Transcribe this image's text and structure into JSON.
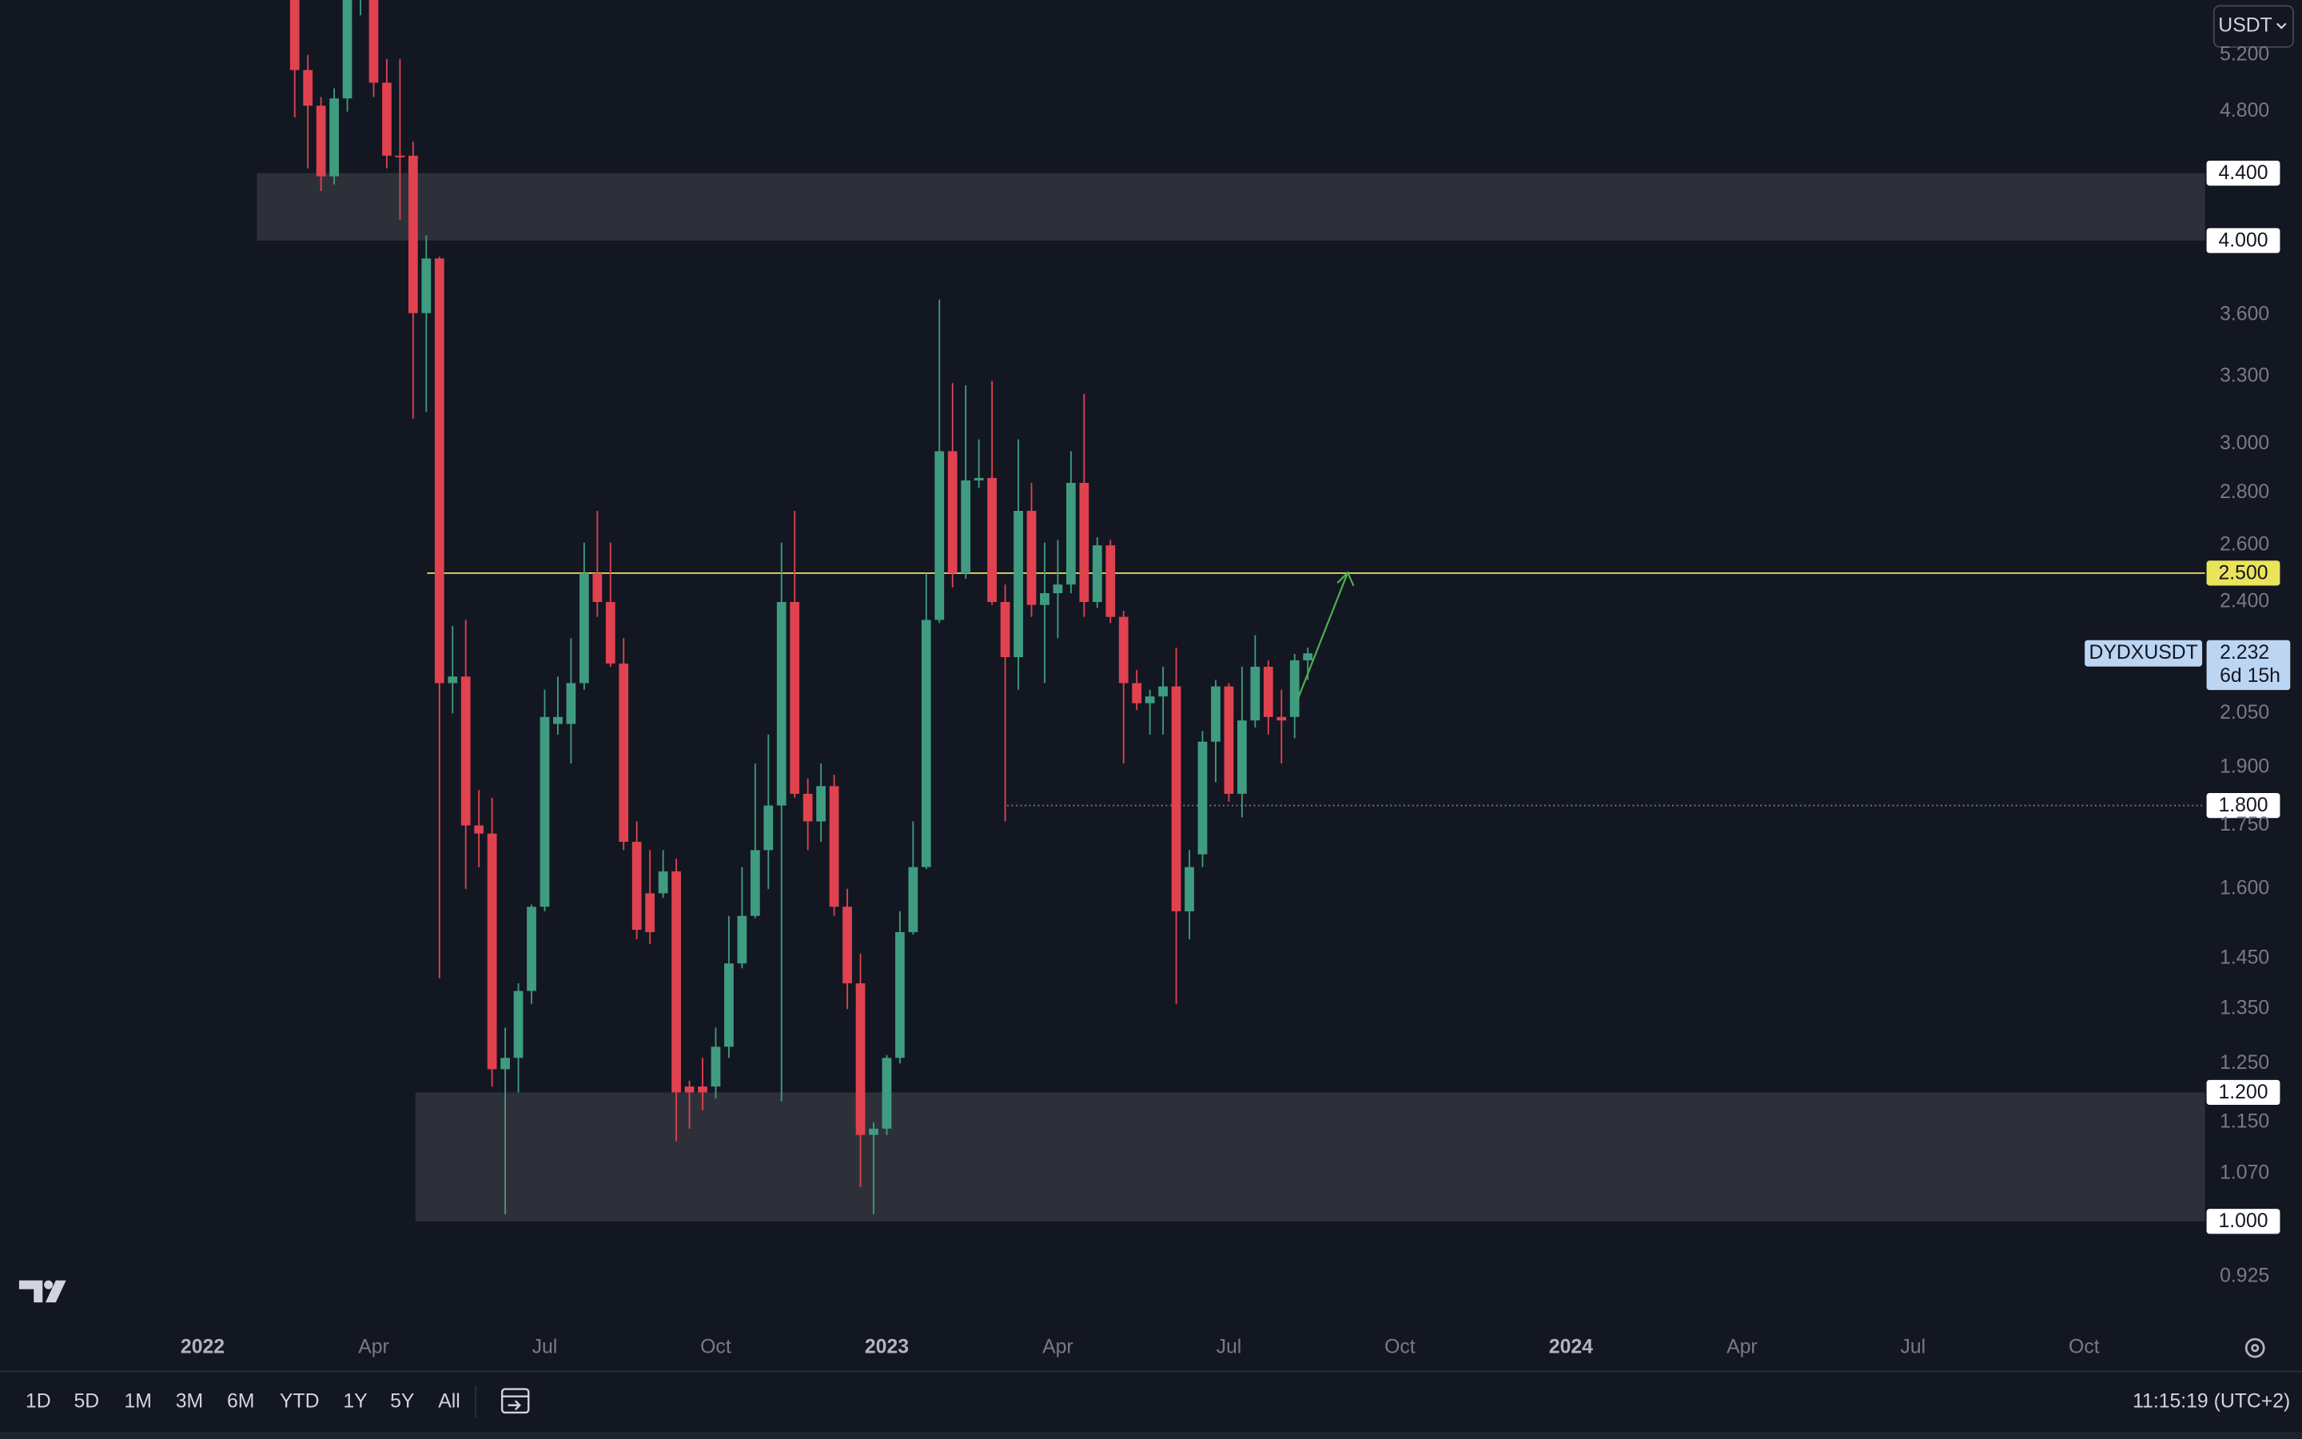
{
  "chart_data": {
    "type": "candlestick",
    "symbol": "DYDXUSDT",
    "currency": "USDT",
    "countdown": "6d 15h",
    "up_color": "#3f9c80",
    "down_color": "#e0424f",
    "log_scale": true,
    "grid": false,
    "x": [
      7,
      8,
      9,
      10,
      11,
      12,
      13,
      14,
      15,
      16,
      17,
      18,
      19,
      20,
      21,
      22,
      23,
      24,
      25,
      26,
      27,
      28,
      29,
      30,
      31,
      32,
      33,
      34,
      35,
      36,
      37,
      38,
      39,
      40,
      41,
      42,
      43,
      44,
      45,
      46,
      47,
      48,
      49,
      50,
      51,
      52,
      53,
      54,
      55,
      56,
      57,
      58,
      59,
      60,
      61,
      62,
      63,
      64,
      65,
      66,
      67,
      68,
      69,
      70,
      71,
      72,
      73,
      74,
      75,
      76,
      77,
      78,
      79,
      80,
      81,
      82,
      83,
      84
    ],
    "open": [
      5.7,
      5.09,
      4.84,
      4.38,
      4.89,
      5.75,
      5.9,
      5.0,
      4.51,
      4.51,
      3.61,
      3.9,
      2.14,
      2.16,
      1.75,
      1.73,
      1.24,
      1.26,
      1.385,
      1.56,
      2.02,
      2.02,
      2.14,
      2.5,
      2.4,
      2.2,
      1.71,
      1.59,
      1.59,
      1.64,
      1.21,
      1.21,
      1.21,
      1.28,
      1.44,
      1.54,
      1.69,
      1.8,
      2.4,
      1.83,
      1.76,
      1.85,
      1.56,
      1.4,
      1.13,
      1.14,
      1.26,
      1.505,
      1.65,
      2.34,
      2.97,
      2.5,
      2.85,
      2.86,
      2.4,
      2.22,
      2.73,
      2.39,
      2.43,
      2.46,
      2.84,
      2.4,
      2.6,
      2.35,
      2.14,
      2.08,
      2.1,
      2.13,
      1.55,
      1.68,
      1.97,
      2.13,
      1.83,
      2.03,
      2.19,
      2.04,
      2.04,
      2.21
    ],
    "high": [
      5.9,
      5.2,
      4.9,
      4.96,
      5.9,
      6.0,
      6.1,
      5.17,
      5.17,
      4.6,
      4.03,
      3.91,
      2.32,
      2.34,
      1.84,
      1.82,
      1.315,
      1.4,
      1.565,
      2.12,
      2.16,
      2.28,
      2.61,
      2.73,
      2.61,
      2.28,
      1.76,
      1.69,
      1.69,
      1.67,
      1.22,
      1.26,
      1.315,
      1.54,
      1.65,
      1.91,
      1.99,
      2.61,
      2.73,
      1.87,
      1.91,
      1.88,
      1.6,
      1.46,
      1.15,
      1.265,
      1.55,
      1.76,
      2.5,
      3.68,
      3.27,
      3.26,
      3.02,
      3.28,
      2.46,
      3.02,
      2.84,
      2.61,
      2.62,
      2.97,
      3.22,
      2.63,
      2.62,
      2.37,
      2.18,
      2.12,
      2.19,
      2.25,
      1.69,
      2.0,
      2.15,
      2.14,
      2.19,
      2.29,
      2.21,
      2.12,
      2.23,
      2.25
    ],
    "low": [
      4.76,
      4.43,
      4.29,
      4.33,
      4.8,
      5.5,
      4.9,
      4.43,
      4.12,
      3.11,
      3.14,
      1.41,
      2.05,
      1.6,
      1.65,
      1.21,
      1.01,
      1.2,
      1.36,
      1.55,
      1.99,
      1.91,
      2.12,
      2.35,
      2.19,
      1.69,
      1.49,
      1.48,
      1.58,
      1.12,
      1.14,
      1.17,
      1.19,
      1.26,
      1.43,
      1.535,
      1.6,
      1.185,
      1.82,
      1.69,
      1.71,
      1.54,
      1.35,
      1.05,
      1.01,
      1.13,
      1.25,
      1.5,
      1.645,
      2.33,
      2.45,
      2.48,
      2.82,
      2.39,
      1.76,
      2.12,
      2.35,
      2.14,
      2.28,
      2.43,
      2.35,
      2.38,
      2.33,
      1.91,
      2.06,
      1.99,
      1.99,
      1.36,
      1.49,
      1.65,
      1.86,
      1.81,
      1.77,
      2.01,
      1.99,
      1.91,
      1.98,
      2.15
    ],
    "close": [
      5.09,
      4.84,
      4.38,
      4.89,
      5.75,
      5.9,
      5.0,
      4.51,
      4.5,
      3.61,
      3.9,
      2.14,
      2.16,
      1.75,
      1.73,
      1.24,
      1.26,
      1.385,
      1.56,
      2.04,
      2.04,
      2.14,
      2.5,
      2.4,
      2.2,
      1.71,
      1.51,
      1.505,
      1.64,
      1.2,
      1.2,
      1.2,
      1.28,
      1.44,
      1.54,
      1.69,
      1.8,
      2.4,
      1.83,
      1.76,
      1.85,
      1.56,
      1.4,
      1.13,
      1.14,
      1.26,
      1.505,
      1.65,
      2.34,
      2.97,
      2.5,
      2.85,
      2.86,
      2.4,
      2.22,
      2.73,
      2.39,
      2.43,
      2.46,
      2.84,
      2.4,
      2.6,
      2.35,
      2.14,
      2.08,
      2.1,
      2.13,
      1.55,
      1.65,
      1.97,
      2.13,
      1.83,
      2.03,
      2.19,
      2.04,
      2.03,
      2.21,
      2.232
    ],
    "xlim": [
      -15.4,
      152.2
    ],
    "xticks": [
      {
        "value": 0,
        "label": "2022"
      },
      {
        "value": 13,
        "label": "Apr"
      },
      {
        "value": 26,
        "label": "Jul"
      },
      {
        "value": 39,
        "label": "Oct"
      },
      {
        "value": 52,
        "label": "2023"
      },
      {
        "value": 65,
        "label": "Apr"
      },
      {
        "value": 78,
        "label": "Jul"
      },
      {
        "value": 91,
        "label": "Oct"
      },
      {
        "value": 104,
        "label": "2024"
      },
      {
        "value": 117,
        "label": "Apr"
      },
      {
        "value": 130,
        "label": "Jul"
      },
      {
        "value": 143,
        "label": "Oct"
      }
    ],
    "ylim": [
      0.868,
      5.62
    ],
    "yticks": [
      {
        "value": 5.2,
        "label": "5.200"
      },
      {
        "value": 4.8,
        "label": "4.800"
      },
      {
        "value": 3.6,
        "label": "3.600"
      },
      {
        "value": 3.3,
        "label": "3.300"
      },
      {
        "value": 3.0,
        "label": "3.000"
      },
      {
        "value": 2.8,
        "label": "2.800"
      },
      {
        "value": 2.6,
        "label": "2.600"
      },
      {
        "value": 2.4,
        "label": "2.400"
      },
      {
        "value": 2.05,
        "label": "2.050"
      },
      {
        "value": 1.9,
        "label": "1.900"
      },
      {
        "value": 1.75,
        "label": "1.750"
      },
      {
        "value": 1.6,
        "label": "1.600"
      },
      {
        "value": 1.45,
        "label": "1.450"
      },
      {
        "value": 1.35,
        "label": "1.350"
      },
      {
        "value": 1.25,
        "label": "1.250"
      },
      {
        "value": 1.15,
        "label": "1.150"
      },
      {
        "value": 1.07,
        "label": "1.070"
      },
      {
        "value": 0.925,
        "label": "0.925"
      }
    ],
    "zones": [
      {
        "high": {
          "value": 4.4,
          "label": "4.400"
        },
        "low": {
          "value": 4.0,
          "label": "4.000"
        }
      },
      {
        "high": {
          "value": 1.2,
          "label": "1.200"
        },
        "low": {
          "value": 1.0,
          "label": "1.000"
        }
      }
    ],
    "horizontal_line": {
      "value": 2.5,
      "label": "2.500",
      "color": "#ebe35a"
    },
    "dotted_line": {
      "value": 1.8,
      "label": "1.800"
    }
  },
  "toolbar": {
    "ranges": [
      "1D",
      "5D",
      "1M",
      "3M",
      "6M",
      "YTD",
      "1Y",
      "5Y",
      "All"
    ],
    "time": "11:15:19 (UTC+2)"
  }
}
